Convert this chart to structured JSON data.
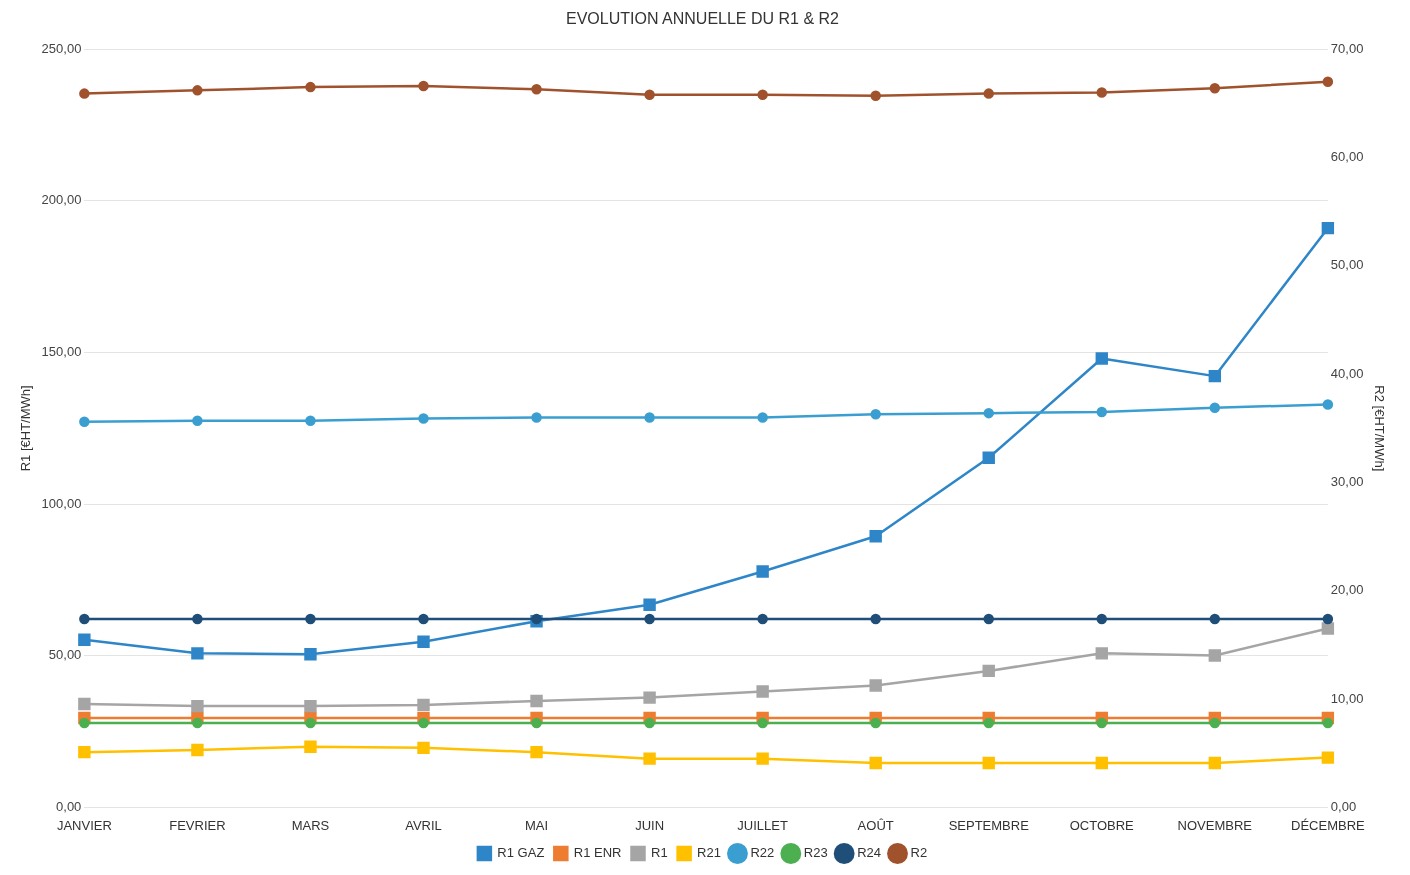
{
  "chart_data": {
    "type": "line",
    "title": "EVOLUTION ANNUELLE DU R1 & R2",
    "ylabel": "R1 [€HT/MWh]",
    "y2label": "R2 [€HT/MWh]",
    "categories": [
      "JANVIER",
      "FEVRIER",
      "MARS",
      "AVRIL",
      "MAI",
      "JUIN",
      "JUILLET",
      "AOÛT",
      "SEPTEMBRE",
      "OCTOBRE",
      "NOVEMBRE",
      "DÉCEMBRE"
    ],
    "series": [
      {
        "name": "R1 GAZ",
        "color": "#2e86c8",
        "marker": "square",
        "values": [
          55.3,
          50.8,
          50.5,
          54.6,
          61.4,
          66.8,
          77.8,
          89.4,
          115.3,
          148.0,
          142.2,
          191.0
        ]
      },
      {
        "name": "R1 ENR",
        "color": "#ed7d31",
        "marker": "square",
        "values": [
          29.5,
          29.5,
          29.5,
          29.5,
          29.5,
          29.5,
          29.5,
          29.5,
          29.5,
          29.5,
          29.5,
          29.5
        ]
      },
      {
        "name": "R1",
        "color": "#a5a5a5",
        "marker": "square",
        "values": [
          34.1,
          33.4,
          33.4,
          33.8,
          35.1,
          36.2,
          38.2,
          40.2,
          45.0,
          50.8,
          50.1,
          59.0
        ]
      },
      {
        "name": "R21",
        "color": "#ffc000",
        "marker": "square",
        "axis": "y2",
        "values": [
          5.1,
          5.3,
          5.6,
          5.5,
          5.1,
          4.5,
          4.5,
          4.1,
          4.1,
          4.1,
          4.1,
          4.6
        ]
      },
      {
        "name": "R22",
        "color": "#3a9fd0",
        "marker": "circle",
        "axis": "y2",
        "values": [
          35.6,
          35.7,
          35.7,
          35.9,
          36.0,
          36.0,
          36.0,
          36.3,
          36.4,
          36.5,
          36.9,
          37.2
        ]
      },
      {
        "name": "R23",
        "color": "#4caf50",
        "marker": "circle",
        "axis": "y2",
        "values": [
          7.8,
          7.8,
          7.8,
          7.8,
          7.8,
          7.8,
          7.8,
          7.8,
          7.8,
          7.8,
          7.8,
          7.8
        ]
      },
      {
        "name": "R24",
        "color": "#1f4e79",
        "marker": "circle",
        "axis": "y2",
        "values": [
          17.4,
          17.4,
          17.4,
          17.4,
          17.4,
          17.4,
          17.4,
          17.4,
          17.4,
          17.4,
          17.4,
          17.4
        ]
      },
      {
        "name": "R2",
        "color": "#a0522d",
        "marker": "circle",
        "axis": "y2",
        "values": [
          65.9,
          66.2,
          66.5,
          66.6,
          66.3,
          65.8,
          65.8,
          65.7,
          65.9,
          66.0,
          66.4,
          67.0
        ]
      }
    ],
    "ylim": [
      0,
      250
    ],
    "yticks": [
      {
        "value": 0,
        "label": "0,00"
      },
      {
        "value": 50,
        "label": "50,00"
      },
      {
        "value": 100,
        "label": "100,00"
      },
      {
        "value": 150,
        "label": "150,00"
      },
      {
        "value": 200,
        "label": "200,00"
      },
      {
        "value": 250,
        "label": "250,00"
      }
    ],
    "y2lim": [
      0,
      70
    ],
    "y2ticks": [
      {
        "value": 0,
        "label": "0,00"
      },
      {
        "value": 10,
        "label": "10,00"
      },
      {
        "value": 20,
        "label": "20,00"
      },
      {
        "value": 30,
        "label": "30,00"
      },
      {
        "value": 40,
        "label": "40,00"
      },
      {
        "value": 50,
        "label": "50,00"
      },
      {
        "value": 60,
        "label": "60,00"
      },
      {
        "value": 70,
        "label": "70,00"
      }
    ],
    "grid": "y",
    "legend": "bottom",
    "line_style": "solid"
  }
}
